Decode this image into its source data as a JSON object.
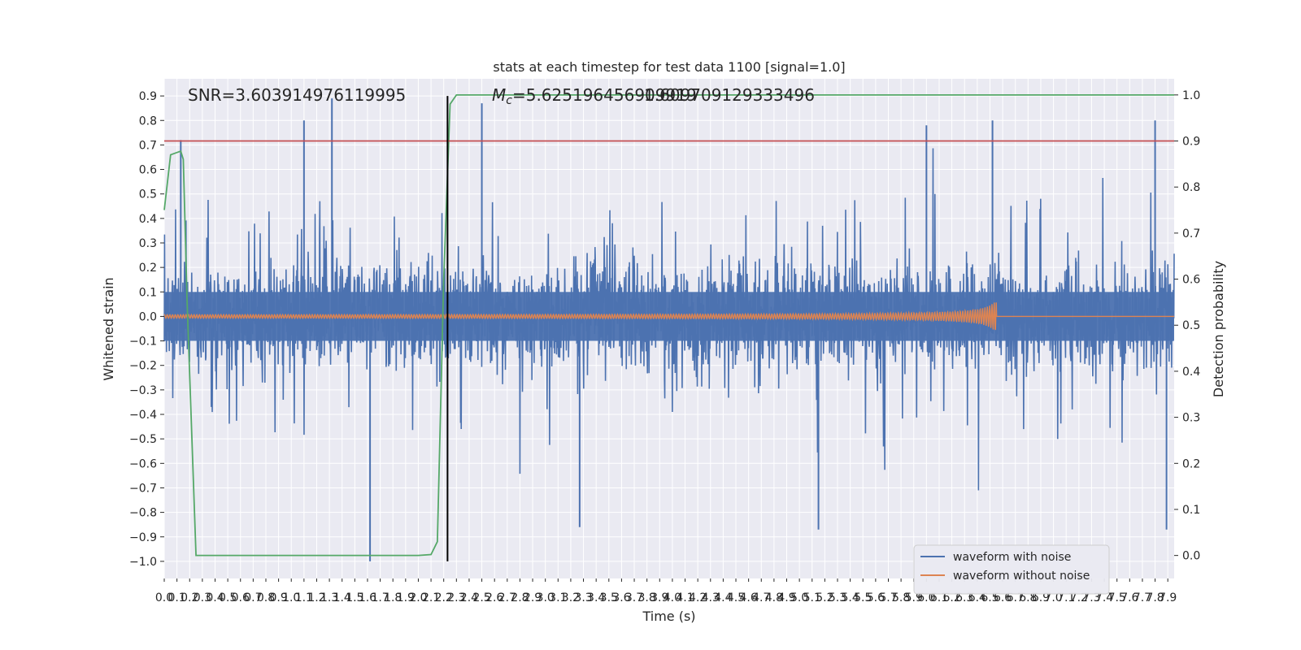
{
  "chart_data": {
    "type": "line",
    "title": "stats at each timestep for test data 1100 [signal=1.0]",
    "xlabel": "Time (s)",
    "ylabel": "Whitened strain",
    "ylabel_right": "Detection probability",
    "xlim": [
      0.0,
      7.95
    ],
    "ylim": [
      -1.07,
      0.97
    ],
    "ylim_right": [
      -0.05,
      1.035
    ],
    "x_ticks": [
      "0.0",
      "0.1",
      "0.2",
      "0.3",
      "0.4",
      "0.5",
      "0.6",
      "0.7",
      "0.8",
      "0.9",
      "1.0",
      "1.1",
      "1.2",
      "1.3",
      "1.4",
      "1.5",
      "1.6",
      "1.7",
      "1.8",
      "1.9",
      "2.0",
      "2.1",
      "2.2",
      "2.3",
      "2.4",
      "2.5",
      "2.6",
      "2.7",
      "2.8",
      "2.9",
      "3.0",
      "3.1",
      "3.2",
      "3.3",
      "3.4",
      "3.5",
      "3.6",
      "3.7",
      "3.8",
      "3.9",
      "4.0",
      "4.1",
      "4.2",
      "4.3",
      "4.4",
      "4.5",
      "4.6",
      "4.7",
      "4.8",
      "4.9",
      "5.0",
      "5.1",
      "5.2",
      "5.3",
      "5.4",
      "5.5",
      "5.6",
      "5.7",
      "5.8",
      "5.9",
      "6.0",
      "6.1",
      "6.2",
      "6.3",
      "6.4",
      "6.5",
      "6.6",
      "6.7",
      "6.8",
      "6.9",
      "7.0",
      "7.1",
      "7.2",
      "7.3",
      "7.4",
      "7.5",
      "7.6",
      "7.7",
      "7.8",
      "7.9"
    ],
    "y_ticks": [
      "0.9",
      "0.8",
      "0.7",
      "0.6",
      "0.5",
      "0.4",
      "0.3",
      "0.2",
      "0.1",
      "0.0",
      "−0.1",
      "−0.2",
      "−0.3",
      "−0.4",
      "−0.5",
      "−0.6",
      "−0.7",
      "−0.8",
      "−0.9",
      "−1.0"
    ],
    "y_ticks_right": [
      "1.0",
      "0.9",
      "0.8",
      "0.7",
      "0.6",
      "0.5",
      "0.4",
      "0.3",
      "0.2",
      "0.1",
      "0.0"
    ],
    "threshold_line": {
      "y_right": 0.9,
      "color": "#c44e52"
    },
    "vertical_marker": {
      "x": 2.23,
      "y_range": [
        -1.0,
        0.9
      ],
      "color": "#000000"
    },
    "annotations": {
      "snr": "SNR=3.603914976119995",
      "mc_symbol": "M",
      "mc_sub": "c",
      "mc_value": "=5.625196456909919",
      "overlap_text": "1.609709129333496"
    },
    "series": [
      {
        "name": "waveform with noise",
        "color": "#4c72b0",
        "kind": "noise",
        "band": [
          -0.45,
          0.45
        ],
        "peaks": [
          [
            1.1,
            0.8
          ],
          [
            1.32,
            0.89
          ],
          [
            0.13,
            0.72
          ],
          [
            2.5,
            0.87
          ],
          [
            6.0,
            0.78
          ],
          [
            6.52,
            0.8
          ],
          [
            7.8,
            0.8
          ],
          [
            1.62,
            -1.0
          ],
          [
            5.15,
            -0.87
          ],
          [
            3.27,
            -0.86
          ],
          [
            7.89,
            -0.87
          ]
        ]
      },
      {
        "name": "waveform without noise",
        "color": "#dd8452",
        "kind": "chirp",
        "x_start": 0.0,
        "x_merge": 6.55,
        "amp_start": 0.005,
        "amp_peak": 0.07
      },
      {
        "name": "",
        "color": "#55a868",
        "kind": "probability",
        "axis": "right",
        "x": [
          0.0,
          0.05,
          0.1,
          0.13,
          0.15,
          0.18,
          0.25,
          0.4,
          1.0,
          2.0,
          2.1,
          2.15,
          2.2,
          2.25,
          2.3,
          7.95
        ],
        "y": [
          0.75,
          0.87,
          0.875,
          0.878,
          0.86,
          0.55,
          0.0,
          0.0,
          0.0,
          0.0,
          0.002,
          0.03,
          0.6,
          0.98,
          1.0,
          1.0
        ]
      }
    ],
    "legend": {
      "placement": "lower-right",
      "entries": [
        "waveform with noise",
        "waveform without noise"
      ]
    },
    "grid": true
  }
}
